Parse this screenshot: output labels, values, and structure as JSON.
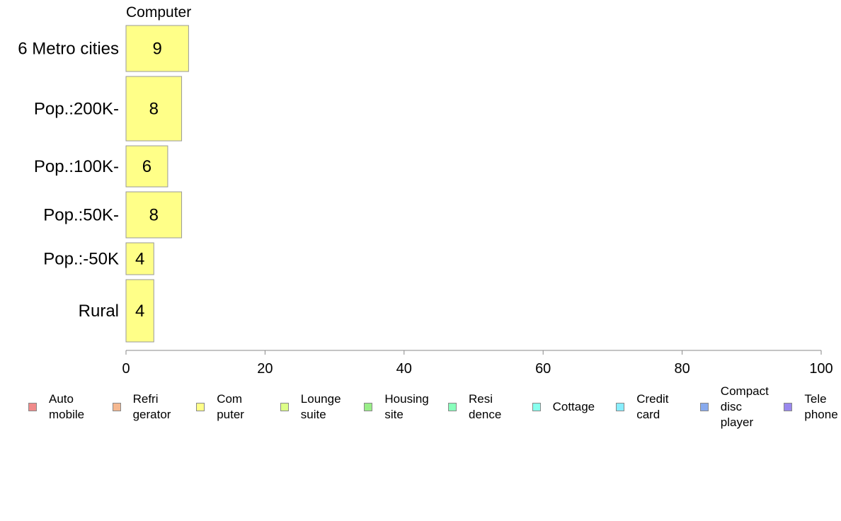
{
  "chart_data": {
    "type": "bar",
    "orientation": "horizontal",
    "title": "Computer",
    "categories": [
      "6 Metro cities",
      "Pop.:200K-",
      "Pop.:100K-",
      "Pop.:50K-",
      "Pop.:-50K",
      "Rural"
    ],
    "values": [
      9,
      8,
      6,
      8,
      4,
      4
    ],
    "series_color": "#ffff88",
    "xlim": [
      0,
      100
    ],
    "xticks": [
      "0",
      "20",
      "40",
      "60",
      "80",
      "100"
    ],
    "grid": false,
    "legend_position": "bottom",
    "legend": [
      {
        "label": "Auto\nmobile",
        "color": "#f08a8a"
      },
      {
        "label": "Refri\ngerator",
        "color": "#f5b890"
      },
      {
        "label": "Com\nputer",
        "color": "#ffff88"
      },
      {
        "label": "Lounge\nsuite",
        "color": "#ddff88"
      },
      {
        "label": "Housing\nsite",
        "color": "#99ee88"
      },
      {
        "label": "Resi\ndence",
        "color": "#88ffbb"
      },
      {
        "label": "Cottage",
        "color": "#88ffee"
      },
      {
        "label": "Credit\ncard",
        "color": "#88eeff"
      },
      {
        "label": "Compact\ndisc\nplayer",
        "color": "#88aaee"
      },
      {
        "label": "Tele\nphone",
        "color": "#9988ee"
      }
    ]
  }
}
